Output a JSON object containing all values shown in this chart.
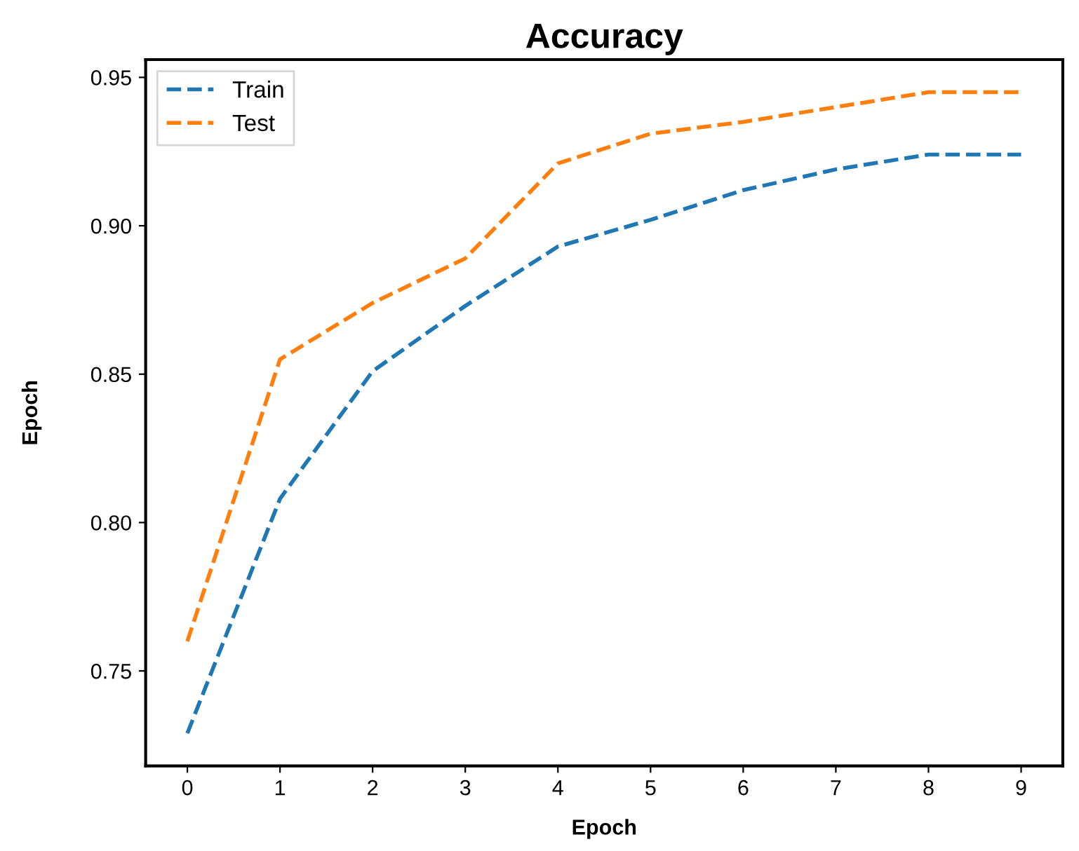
{
  "chart_data": {
    "type": "line",
    "title": "Accuracy",
    "xlabel": "Epoch",
    "ylabel": "Epoch",
    "x": [
      0,
      1,
      2,
      3,
      4,
      5,
      6,
      7,
      8,
      9
    ],
    "series": [
      {
        "name": "Train",
        "color": "#1f77b4",
        "values": [
          0.729,
          0.808,
          0.851,
          0.873,
          0.893,
          0.902,
          0.912,
          0.919,
          0.924,
          0.924
        ]
      },
      {
        "name": "Test",
        "color": "#ff7f0e",
        "values": [
          0.76,
          0.855,
          0.874,
          0.889,
          0.921,
          0.931,
          0.935,
          0.94,
          0.945,
          0.945
        ]
      }
    ],
    "xlim": [
      -0.45,
      9.45
    ],
    "ylim": [
      0.718,
      0.956
    ],
    "xticks": [
      0,
      1,
      2,
      3,
      4,
      5,
      6,
      7,
      8,
      9
    ],
    "yticks": [
      {
        "value": 0.75,
        "label": "0.75"
      },
      {
        "value": 0.8,
        "label": "0.80"
      },
      {
        "value": 0.85,
        "label": "0.85"
      },
      {
        "value": 0.9,
        "label": "0.90"
      },
      {
        "value": 0.95,
        "label": "0.95"
      }
    ],
    "legend": "top left",
    "line_style": "dashed",
    "marker": "none",
    "grid": false
  }
}
